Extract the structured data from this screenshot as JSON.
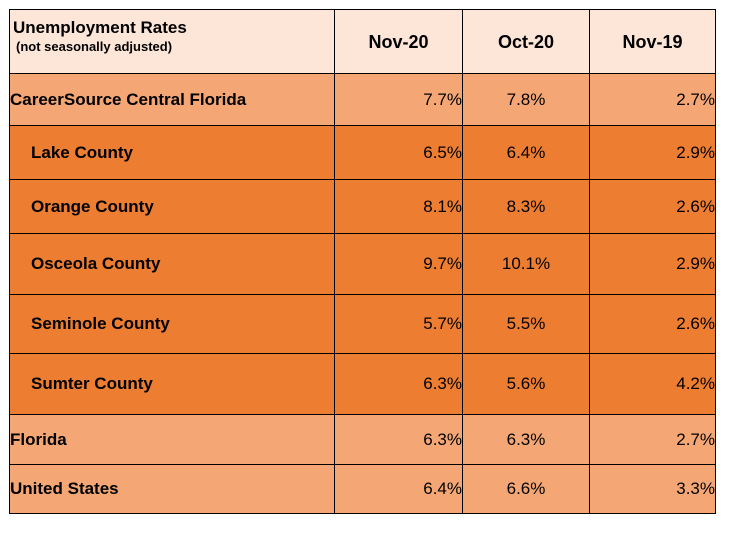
{
  "table": {
    "title": "Unemployment Rates",
    "subtitle": "(not seasonally adjusted)",
    "columns": [
      "Nov-20",
      "Oct-20",
      "Nov-19"
    ],
    "rows": [
      {
        "label": "CareerSource Central Florida",
        "values": [
          "7.7%",
          "7.8%",
          "2.7%"
        ],
        "shade": "#f4a775"
      },
      {
        "label": "Lake County",
        "values": [
          "6.5%",
          "6.4%",
          "2.9%"
        ],
        "shade": "#ed7d31"
      },
      {
        "label": "Orange County",
        "values": [
          "8.1%",
          "8.3%",
          "2.6%"
        ],
        "shade": "#ed7d31"
      },
      {
        "label": "Osceola County",
        "values": [
          "9.7%",
          "10.1%",
          "2.9%"
        ],
        "shade": "#ed7d31"
      },
      {
        "label": "Seminole County",
        "values": [
          "5.7%",
          "5.5%",
          "2.6%"
        ],
        "shade": "#ed7d31"
      },
      {
        "label": "Sumter County",
        "values": [
          "6.3%",
          "5.6%",
          "4.2%"
        ],
        "shade": "#ed7d31"
      },
      {
        "label": "Florida",
        "values": [
          "6.3%",
          "6.3%",
          "2.7%"
        ],
        "shade": "#f4a775"
      },
      {
        "label": "United States",
        "values": [
          "6.4%",
          "6.6%",
          "3.3%"
        ],
        "shade": "#f4a775"
      }
    ],
    "colors": {
      "header_bg": "#fde5d8",
      "light_row_bg": "#f4a775",
      "dark_row_bg": "#ed7d31",
      "border": "#000000"
    }
  }
}
